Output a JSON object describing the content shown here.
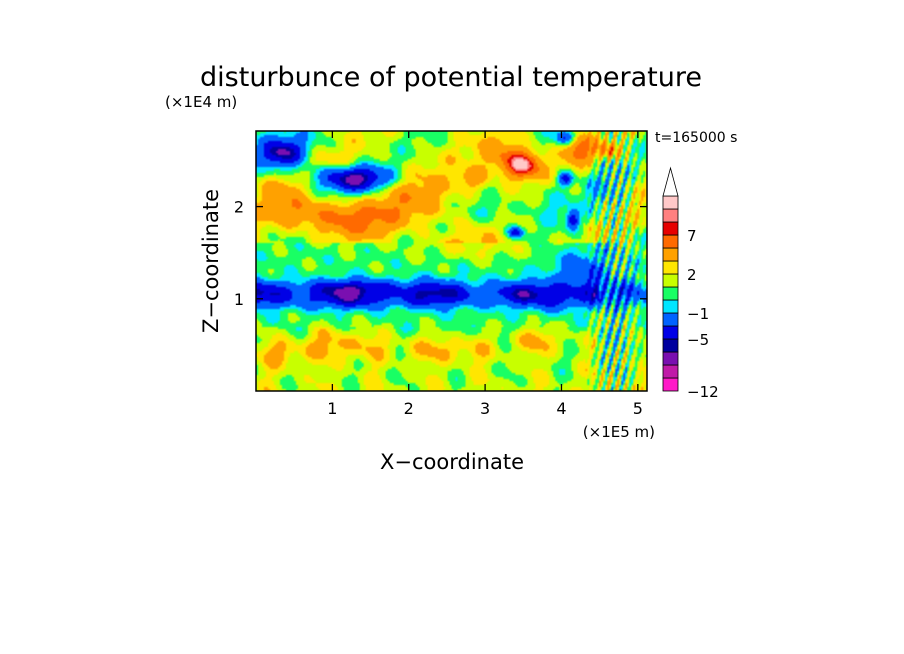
{
  "chart_data": {
    "type": "heatmap",
    "title": "disturbunce of potential temperature",
    "xlabel": "X−coordinate",
    "ylabel": "Z−coordinate",
    "x_unit": "(×1E5 m)",
    "y_unit": "(×1E4 m)",
    "time_label": "t=165000 s",
    "xlim": [
      0,
      5.12
    ],
    "ylim": [
      0,
      2.82
    ],
    "x_ticks": [
      {
        "value": 1,
        "label": "1"
      },
      {
        "value": 2,
        "label": "2"
      },
      {
        "value": 3,
        "label": "3"
      },
      {
        "value": 4,
        "label": "4"
      },
      {
        "value": 5,
        "label": "5"
      }
    ],
    "y_ticks": [
      {
        "value": 1,
        "label": "1"
      },
      {
        "value": 2,
        "label": "2"
      }
    ],
    "colorbar": {
      "levels": [
        {
          "value": -12,
          "color": "#ff19c8"
        },
        {
          "value": -10,
          "color": "#c01aa8"
        },
        {
          "value": -8,
          "color": "#7a0fb0"
        },
        {
          "value": -6,
          "color": "#00009e"
        },
        {
          "value": -5,
          "color": "#0000e6"
        },
        {
          "value": -3,
          "color": "#0063ff"
        },
        {
          "value": -1,
          "color": "#00e6ff"
        },
        {
          "value": 0,
          "color": "#19ff64"
        },
        {
          "value": 1,
          "color": "#c8ff00"
        },
        {
          "value": 2,
          "color": "#ffe600"
        },
        {
          "value": 3,
          "color": "#ffa100"
        },
        {
          "value": 5,
          "color": "#ff6a00"
        },
        {
          "value": 7,
          "color": "#e60000"
        },
        {
          "value": 8,
          "color": "#ff8080"
        },
        {
          "value": 9,
          "color": "#ffc8c8"
        }
      ],
      "tick_labels": [
        {
          "value": 7,
          "label": "7"
        },
        {
          "value": 2,
          "label": "2"
        },
        {
          "value": -1,
          "label": "−1"
        },
        {
          "value": -5,
          "label": "−5"
        },
        {
          "value": -12,
          "label": "−12"
        }
      ],
      "extend": "max"
    },
    "blobs": [
      {
        "x": 0.35,
        "z": 2.57,
        "sx": 0.28,
        "sz": 0.14,
        "amp": -6
      },
      {
        "x": 1.35,
        "z": 2.3,
        "sx": 0.42,
        "sz": 0.13,
        "amp": -6
      },
      {
        "x": 1.05,
        "z": 2.3,
        "sx": 0.55,
        "sz": 0.2,
        "amp": -2.5
      },
      {
        "x": 0.15,
        "z": 2.72,
        "sx": 0.55,
        "sz": 0.2,
        "amp": -2
      },
      {
        "x": 0.3,
        "z": 2.2,
        "sx": 0.3,
        "sz": 0.15,
        "amp": 2.5
      },
      {
        "x": 1.2,
        "z": 1.85,
        "sx": 0.55,
        "sz": 0.18,
        "amp": 3.5
      },
      {
        "x": 0.6,
        "z": 1.95,
        "sx": 0.55,
        "sz": 0.18,
        "amp": 2.5
      },
      {
        "x": 2.0,
        "z": 2.05,
        "sx": 0.7,
        "sz": 0.3,
        "amp": 2.5
      },
      {
        "x": 1.0,
        "z": 2.5,
        "sx": 0.4,
        "sz": 0.1,
        "amp": 1.5
      },
      {
        "x": 3.5,
        "z": 2.45,
        "sx": 0.22,
        "sz": 0.14,
        "amp": 7.5
      },
      {
        "x": 3.25,
        "z": 2.55,
        "sx": 0.3,
        "sz": 0.2,
        "amp": 3.5
      },
      {
        "x": 4.25,
        "z": 2.62,
        "sx": 0.2,
        "sz": 0.15,
        "amp": 4.5
      },
      {
        "x": 4.62,
        "z": 2.6,
        "sx": 0.14,
        "sz": 0.1,
        "amp": 4
      },
      {
        "x": 4.05,
        "z": 2.75,
        "sx": 0.12,
        "sz": 0.08,
        "amp": -5
      },
      {
        "x": 4.05,
        "z": 2.3,
        "sx": 0.1,
        "sz": 0.08,
        "amp": -5.5
      },
      {
        "x": 4.15,
        "z": 1.85,
        "sx": 0.08,
        "sz": 0.1,
        "amp": -5.5
      },
      {
        "x": 3.4,
        "z": 1.72,
        "sx": 0.1,
        "sz": 0.06,
        "amp": -5
      },
      {
        "x": 3.1,
        "z": 1.95,
        "sx": 0.3,
        "sz": 0.14,
        "amp": -2
      },
      {
        "x": 3.8,
        "z": 2.05,
        "sx": 0.3,
        "sz": 0.2,
        "amp": -1.5
      },
      {
        "x": 4.55,
        "z": 2.2,
        "sx": 0.25,
        "sz": 0.35,
        "amp": -1.5
      },
      {
        "x": 2.85,
        "z": 2.3,
        "sx": 0.2,
        "sz": 0.12,
        "amp": 3
      },
      {
        "x": 2.9,
        "z": 1.55,
        "sx": 0.7,
        "sz": 0.12,
        "amp": 1.5
      },
      {
        "x": 4.3,
        "z": 1.3,
        "sx": 0.4,
        "sz": 0.22,
        "amp": -3
      },
      {
        "x": 1.4,
        "z": 1.12,
        "sx": 0.75,
        "sz": 0.09,
        "amp": -2
      },
      {
        "x": 1.3,
        "z": 0.95,
        "sx": 0.9,
        "sz": 0.07,
        "amp": -1
      },
      {
        "x": 4.0,
        "z": 0.95,
        "sx": 0.25,
        "sz": 0.1,
        "amp": -1.5
      },
      {
        "x": 1.1,
        "z": 0.5,
        "sx": 0.6,
        "sz": 0.18,
        "amp": 2.5
      },
      {
        "x": 2.5,
        "z": 0.45,
        "sx": 0.6,
        "sz": 0.15,
        "amp": 2.2
      },
      {
        "x": 3.7,
        "z": 0.55,
        "sx": 0.4,
        "sz": 0.15,
        "amp": 2.2
      },
      {
        "x": 0.3,
        "z": 0.4,
        "sx": 0.3,
        "sz": 0.15,
        "amp": 2
      }
    ]
  }
}
